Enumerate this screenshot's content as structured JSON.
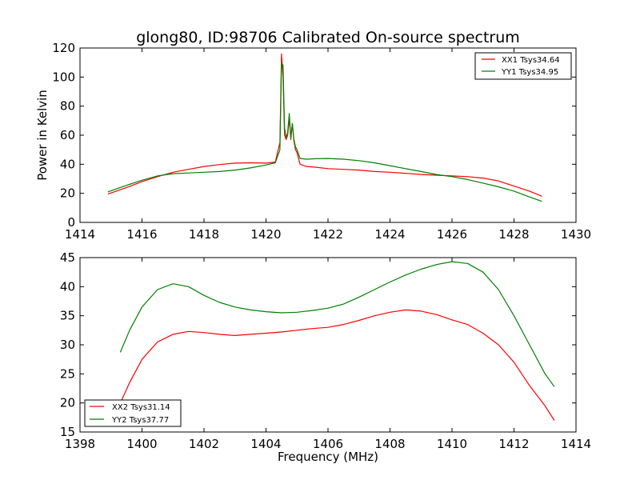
{
  "chart_data": [
    {
      "type": "line",
      "title": "glong80, ID:98706 Calibrated On-source spectrum",
      "xlabel": "",
      "ylabel": "Power in Kelvin",
      "xlim": [
        1414,
        1430
      ],
      "ylim": [
        0,
        120
      ],
      "xticks": [
        "1414",
        "1416",
        "1418",
        "1420",
        "1422",
        "1424",
        "1426",
        "1428",
        "1430"
      ],
      "yticks": [
        "0",
        "20",
        "40",
        "60",
        "80",
        "100",
        "120"
      ],
      "legend_position": "top-right",
      "series": [
        {
          "name": "XX1 Tsys34.64",
          "color": "#ff0000",
          "x": [
            1414.9,
            1415.5,
            1416.0,
            1416.5,
            1417.0,
            1417.5,
            1418.0,
            1418.5,
            1419.0,
            1419.5,
            1420.0,
            1420.3,
            1420.45,
            1420.5,
            1420.55,
            1420.6,
            1420.65,
            1420.7,
            1420.75,
            1420.8,
            1420.85,
            1420.9,
            1420.95,
            1421.0,
            1421.1,
            1421.3,
            1421.6,
            1422.0,
            1422.5,
            1423.0,
            1423.5,
            1424.0,
            1424.5,
            1425.0,
            1425.5,
            1426.0,
            1426.5,
            1427.0,
            1427.5,
            1428.0,
            1428.5,
            1428.9
          ],
          "y": [
            19.5,
            24,
            28,
            31.5,
            34.5,
            36.5,
            38.5,
            39.8,
            40.8,
            41,
            40.8,
            41.5,
            55,
            116,
            100,
            60,
            57,
            60,
            72,
            57,
            68,
            56,
            50,
            48,
            40,
            38.5,
            38,
            37,
            36.5,
            36,
            35,
            34.5,
            33.8,
            33,
            32.5,
            32,
            31.5,
            30.5,
            28.5,
            25,
            21.5,
            18
          ]
        },
        {
          "name": "YY1 Tsys34.95",
          "color": "#008000",
          "x": [
            1414.9,
            1415.5,
            1416.0,
            1416.5,
            1417.0,
            1417.5,
            1418.0,
            1418.5,
            1419.0,
            1419.5,
            1420.0,
            1420.3,
            1420.45,
            1420.5,
            1420.55,
            1420.6,
            1420.65,
            1420.7,
            1420.75,
            1420.8,
            1420.85,
            1420.9,
            1420.95,
            1421.0,
            1421.1,
            1421.3,
            1421.6,
            1422.0,
            1422.5,
            1423.0,
            1423.5,
            1424.0,
            1424.5,
            1425.0,
            1425.5,
            1426.0,
            1426.5,
            1427.0,
            1427.5,
            1428.0,
            1428.5,
            1428.9
          ],
          "y": [
            21,
            25.5,
            29,
            32,
            33.5,
            34,
            34.5,
            35,
            36,
            37.5,
            39.5,
            41,
            50,
            110,
            108,
            65,
            58,
            62,
            75,
            58,
            68,
            57,
            52,
            50,
            44,
            43.5,
            43.8,
            44,
            43.5,
            42.5,
            41,
            39,
            37,
            35,
            33,
            31.5,
            29.5,
            27,
            24.5,
            21.5,
            17.5,
            14.5
          ]
        }
      ]
    },
    {
      "type": "line",
      "title": "",
      "xlabel": "Frequency (MHz)",
      "ylabel": "",
      "xlim": [
        1398,
        1414
      ],
      "ylim": [
        15,
        45
      ],
      "xticks": [
        "1398",
        "1400",
        "1402",
        "1404",
        "1406",
        "1408",
        "1410",
        "1412",
        "1414"
      ],
      "yticks": [
        "15",
        "20",
        "25",
        "30",
        "35",
        "40",
        "45"
      ],
      "legend_position": "lower-left",
      "series": [
        {
          "name": "XX2 Tsys31.14",
          "color": "#ff0000",
          "x": [
            1399.3,
            1399.6,
            1400.0,
            1400.5,
            1401.0,
            1401.5,
            1402.0,
            1402.5,
            1403.0,
            1403.5,
            1404.0,
            1404.5,
            1405.0,
            1405.5,
            1406.0,
            1406.5,
            1407.0,
            1407.5,
            1408.0,
            1408.5,
            1409.0,
            1409.5,
            1410.0,
            1410.5,
            1411.0,
            1411.5,
            1412.0,
            1412.5,
            1413.0,
            1413.3
          ],
          "y": [
            20,
            23.5,
            27.5,
            30.5,
            31.8,
            32.3,
            32.1,
            31.8,
            31.6,
            31.8,
            32,
            32.2,
            32.5,
            32.8,
            33,
            33.5,
            34.2,
            35,
            35.6,
            36,
            35.8,
            35.2,
            34.3,
            33.5,
            32,
            30,
            27,
            23,
            19.5,
            17
          ]
        },
        {
          "name": "YY2 Tsys37.77",
          "color": "#008000",
          "x": [
            1399.3,
            1399.6,
            1400.0,
            1400.5,
            1401.0,
            1401.5,
            1402.0,
            1402.5,
            1403.0,
            1403.5,
            1404.0,
            1404.5,
            1405.0,
            1405.5,
            1406.0,
            1406.5,
            1407.0,
            1407.5,
            1408.0,
            1408.5,
            1409.0,
            1409.5,
            1410.0,
            1410.5,
            1411.0,
            1411.5,
            1412.0,
            1412.5,
            1413.0,
            1413.3
          ],
          "y": [
            28.7,
            32.5,
            36.5,
            39.5,
            40.5,
            40,
            38.5,
            37.3,
            36.5,
            36,
            35.7,
            35.5,
            35.6,
            35.9,
            36.3,
            37,
            38.2,
            39.5,
            40.8,
            42,
            43,
            43.8,
            44.3,
            44,
            42.5,
            39.5,
            35,
            30,
            25,
            22.8
          ]
        }
      ]
    }
  ]
}
